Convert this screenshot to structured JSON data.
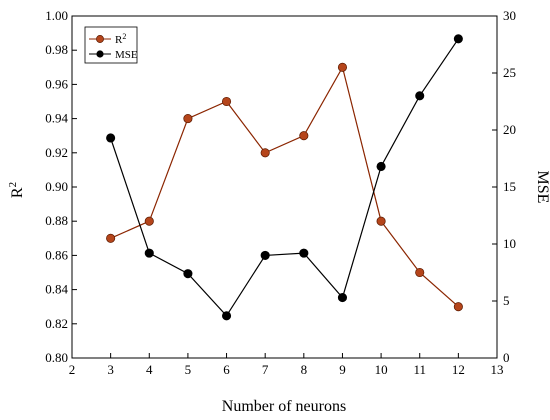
{
  "chart_data": {
    "type": "line",
    "title": "",
    "xlabel": "Number of neurons",
    "ylabel": "R",
    "ylabel_sup": "2",
    "y2label": "MSE",
    "x_ticks": [
      "2",
      "3",
      "4",
      "5",
      "6",
      "7",
      "8",
      "9",
      "10",
      "11",
      "12",
      "13"
    ],
    "y_ticks": [
      "0.80",
      "0.82",
      "0.84",
      "0.86",
      "0.88",
      "0.90",
      "0.92",
      "0.94",
      "0.96",
      "0.98",
      "1.00"
    ],
    "y2_ticks": [
      "0",
      "5",
      "10",
      "15",
      "20",
      "25",
      "30"
    ],
    "xlim": [
      2,
      13
    ],
    "ylim": [
      0.8,
      1.0
    ],
    "y2lim": [
      0,
      30
    ],
    "legend_position": "top-left",
    "series": [
      {
        "name": "R",
        "name_sup": "2",
        "axis": "left",
        "color": "#8B2500",
        "marker_color": "#B5451B",
        "x": [
          3,
          4,
          5,
          6,
          7,
          8,
          9,
          10,
          11,
          12
        ],
        "values": [
          0.87,
          0.88,
          0.94,
          0.95,
          0.92,
          0.93,
          0.97,
          0.88,
          0.85,
          0.83
        ]
      },
      {
        "name": "MSE",
        "axis": "right",
        "color": "#000000",
        "marker_color": "#000000",
        "x": [
          3,
          4,
          5,
          6,
          7,
          8,
          9,
          10,
          11,
          12
        ],
        "values": [
          19.3,
          9.2,
          7.4,
          3.7,
          9.0,
          9.2,
          5.3,
          16.8,
          23.0,
          28.0
        ]
      }
    ]
  }
}
